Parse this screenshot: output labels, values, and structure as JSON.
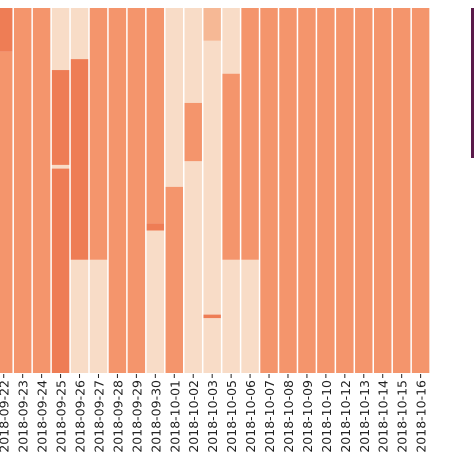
{
  "colors": {
    "base": "#f4956c",
    "light": "#f8dcc7",
    "mid": "#f6b895",
    "dark": "#ee7d55",
    "edge": "#5a1a4a",
    "separator": "#ffffff",
    "tick_text": "#222222"
  },
  "chart_data": {
    "type": "heatmap",
    "title": "",
    "xlabel": "",
    "ylabel": "",
    "colorbar": "partially visible at right edge",
    "x_categories": [
      "2018-09-22",
      "2018-09-23",
      "2018-09-24",
      "2018-09-25",
      "2018-09-26",
      "2018-09-27",
      "2018-09-28",
      "2018-09-29",
      "2018-09-30",
      "2018-10-01",
      "2018-10-02",
      "2018-10-03",
      "2018-10-05",
      "2018-10-06",
      "2018-10-07",
      "2018-10-08",
      "2018-10-09",
      "2018-10-10",
      "2018-10-12",
      "2018-10-13",
      "2018-10-14",
      "2018-10-15",
      "2018-10-16"
    ],
    "row_count": 100,
    "level_scale": "0 = lightest, 1 = medium-light, 2 = base, 3 = darker",
    "columns": [
      {
        "date": "2018-09-22",
        "segments": [
          {
            "from": 0,
            "to": 12,
            "level": 3
          },
          {
            "from": 12,
            "to": 100,
            "level": 2
          }
        ]
      },
      {
        "date": "2018-09-23",
        "segments": [
          {
            "from": 0,
            "to": 100,
            "level": 2
          }
        ]
      },
      {
        "date": "2018-09-24",
        "segments": [
          {
            "from": 0,
            "to": 100,
            "level": 2
          }
        ]
      },
      {
        "date": "2018-09-25",
        "segments": [
          {
            "from": 0,
            "to": 17,
            "level": 0
          },
          {
            "from": 17,
            "to": 43,
            "level": 3
          },
          {
            "from": 43,
            "to": 44,
            "level": 0
          },
          {
            "from": 44,
            "to": 100,
            "level": 3
          }
        ]
      },
      {
        "date": "2018-09-26",
        "segments": [
          {
            "from": 0,
            "to": 14,
            "level": 0
          },
          {
            "from": 14,
            "to": 69,
            "level": 3
          },
          {
            "from": 69,
            "to": 100,
            "level": 0
          }
        ]
      },
      {
        "date": "2018-09-27",
        "segments": [
          {
            "from": 0,
            "to": 69,
            "level": 2
          },
          {
            "from": 69,
            "to": 100,
            "level": 0
          }
        ]
      },
      {
        "date": "2018-09-28",
        "segments": [
          {
            "from": 0,
            "to": 100,
            "level": 2
          }
        ]
      },
      {
        "date": "2018-09-29",
        "segments": [
          {
            "from": 0,
            "to": 100,
            "level": 2
          }
        ]
      },
      {
        "date": "2018-09-30",
        "segments": [
          {
            "from": 0,
            "to": 59,
            "level": 2
          },
          {
            "from": 59,
            "to": 61,
            "level": 3
          },
          {
            "from": 61,
            "to": 100,
            "level": 0
          }
        ]
      },
      {
        "date": "2018-10-01",
        "segments": [
          {
            "from": 0,
            "to": 49,
            "level": 0
          },
          {
            "from": 49,
            "to": 100,
            "level": 2
          }
        ]
      },
      {
        "date": "2018-10-02",
        "segments": [
          {
            "from": 0,
            "to": 26,
            "level": 0
          },
          {
            "from": 26,
            "to": 42,
            "level": 2
          },
          {
            "from": 42,
            "to": 100,
            "level": 0
          }
        ]
      },
      {
        "date": "2018-10-03",
        "segments": [
          {
            "from": 0,
            "to": 9,
            "level": 1
          },
          {
            "from": 9,
            "to": 84,
            "level": 0
          },
          {
            "from": 84,
            "to": 85,
            "level": 3
          },
          {
            "from": 85,
            "to": 100,
            "level": 0
          }
        ]
      },
      {
        "date": "2018-10-05",
        "segments": [
          {
            "from": 0,
            "to": 18,
            "level": 0
          },
          {
            "from": 18,
            "to": 69,
            "level": 2
          },
          {
            "from": 69,
            "to": 100,
            "level": 0
          }
        ]
      },
      {
        "date": "2018-10-06",
        "segments": [
          {
            "from": 0,
            "to": 69,
            "level": 2
          },
          {
            "from": 69,
            "to": 100,
            "level": 0
          }
        ]
      },
      {
        "date": "2018-10-07",
        "segments": [
          {
            "from": 0,
            "to": 100,
            "level": 2
          }
        ]
      },
      {
        "date": "2018-10-08",
        "segments": [
          {
            "from": 0,
            "to": 100,
            "level": 2
          }
        ]
      },
      {
        "date": "2018-10-09",
        "segments": [
          {
            "from": 0,
            "to": 100,
            "level": 2
          }
        ]
      },
      {
        "date": "2018-10-10",
        "segments": [
          {
            "from": 0,
            "to": 100,
            "level": 2
          }
        ]
      },
      {
        "date": "2018-10-12",
        "segments": [
          {
            "from": 0,
            "to": 100,
            "level": 2
          }
        ]
      },
      {
        "date": "2018-10-13",
        "segments": [
          {
            "from": 0,
            "to": 100,
            "level": 2
          }
        ]
      },
      {
        "date": "2018-10-14",
        "segments": [
          {
            "from": 0,
            "to": 100,
            "level": 2
          }
        ]
      },
      {
        "date": "2018-10-15",
        "segments": [
          {
            "from": 0,
            "to": 100,
            "level": 2
          }
        ]
      },
      {
        "date": "2018-10-16",
        "segments": [
          {
            "from": 0,
            "to": 100,
            "level": 2
          }
        ]
      }
    ]
  }
}
